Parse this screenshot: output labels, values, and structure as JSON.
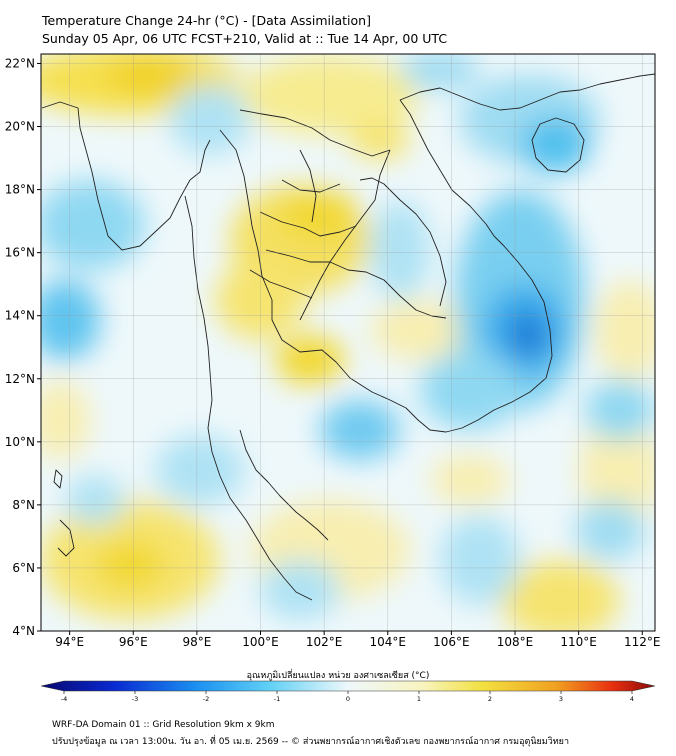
{
  "title": {
    "line1": "Temperature Change 24-hr (°C) - [Data Assimilation]",
    "line2": "Sunday 05 Apr, 06 UTC FCST+210, Valid at :: Tue 14 Apr, 00 UTC"
  },
  "map": {
    "lat_labels": [
      "22°N",
      "20°N",
      "18°N",
      "16°N",
      "14°N",
      "12°N",
      "10°N",
      "8°N",
      "6°N",
      "4°N"
    ],
    "lon_labels": [
      "94°E",
      "96°E",
      "98°E",
      "100°E",
      "102°E",
      "104°E",
      "106°E",
      "108°E",
      "110°E",
      "112°E"
    ],
    "lat_range": [
      4,
      22.3
    ],
    "lon_range": [
      93.1,
      112.4
    ],
    "grid": true
  },
  "colorbar": {
    "label": "อุณหภูมิเปลี่ยนแปลง หน่วย องศาเซลเซียส (°C)",
    "ticks": [
      "-4",
      "-3",
      "-2",
      "-1",
      "0",
      "1",
      "2",
      "3",
      "4"
    ],
    "range": [
      -4,
      4
    ],
    "colors": [
      "#08086e",
      "#0a2ad2",
      "#1a8ef0",
      "#5fd0f5",
      "#e8f6fb",
      "#f8f4c0",
      "#f2e040",
      "#f0a020",
      "#e83010",
      "#8a0a0a"
    ]
  },
  "footer": {
    "line1": "WRF-DA Domain 01 :: Grid Resolution 9km x 9km",
    "line2": "ปรับปรุงข้อมูล ณ เวลา 13:00น. วัน อา. ที่ 05 เม.ย. 2569 -- © ส่วนพยากรณ์อากาศเชิงตัวเลข กองพยากรณ์อากาศ กรมอุตุนิยมวิทยา"
  }
}
